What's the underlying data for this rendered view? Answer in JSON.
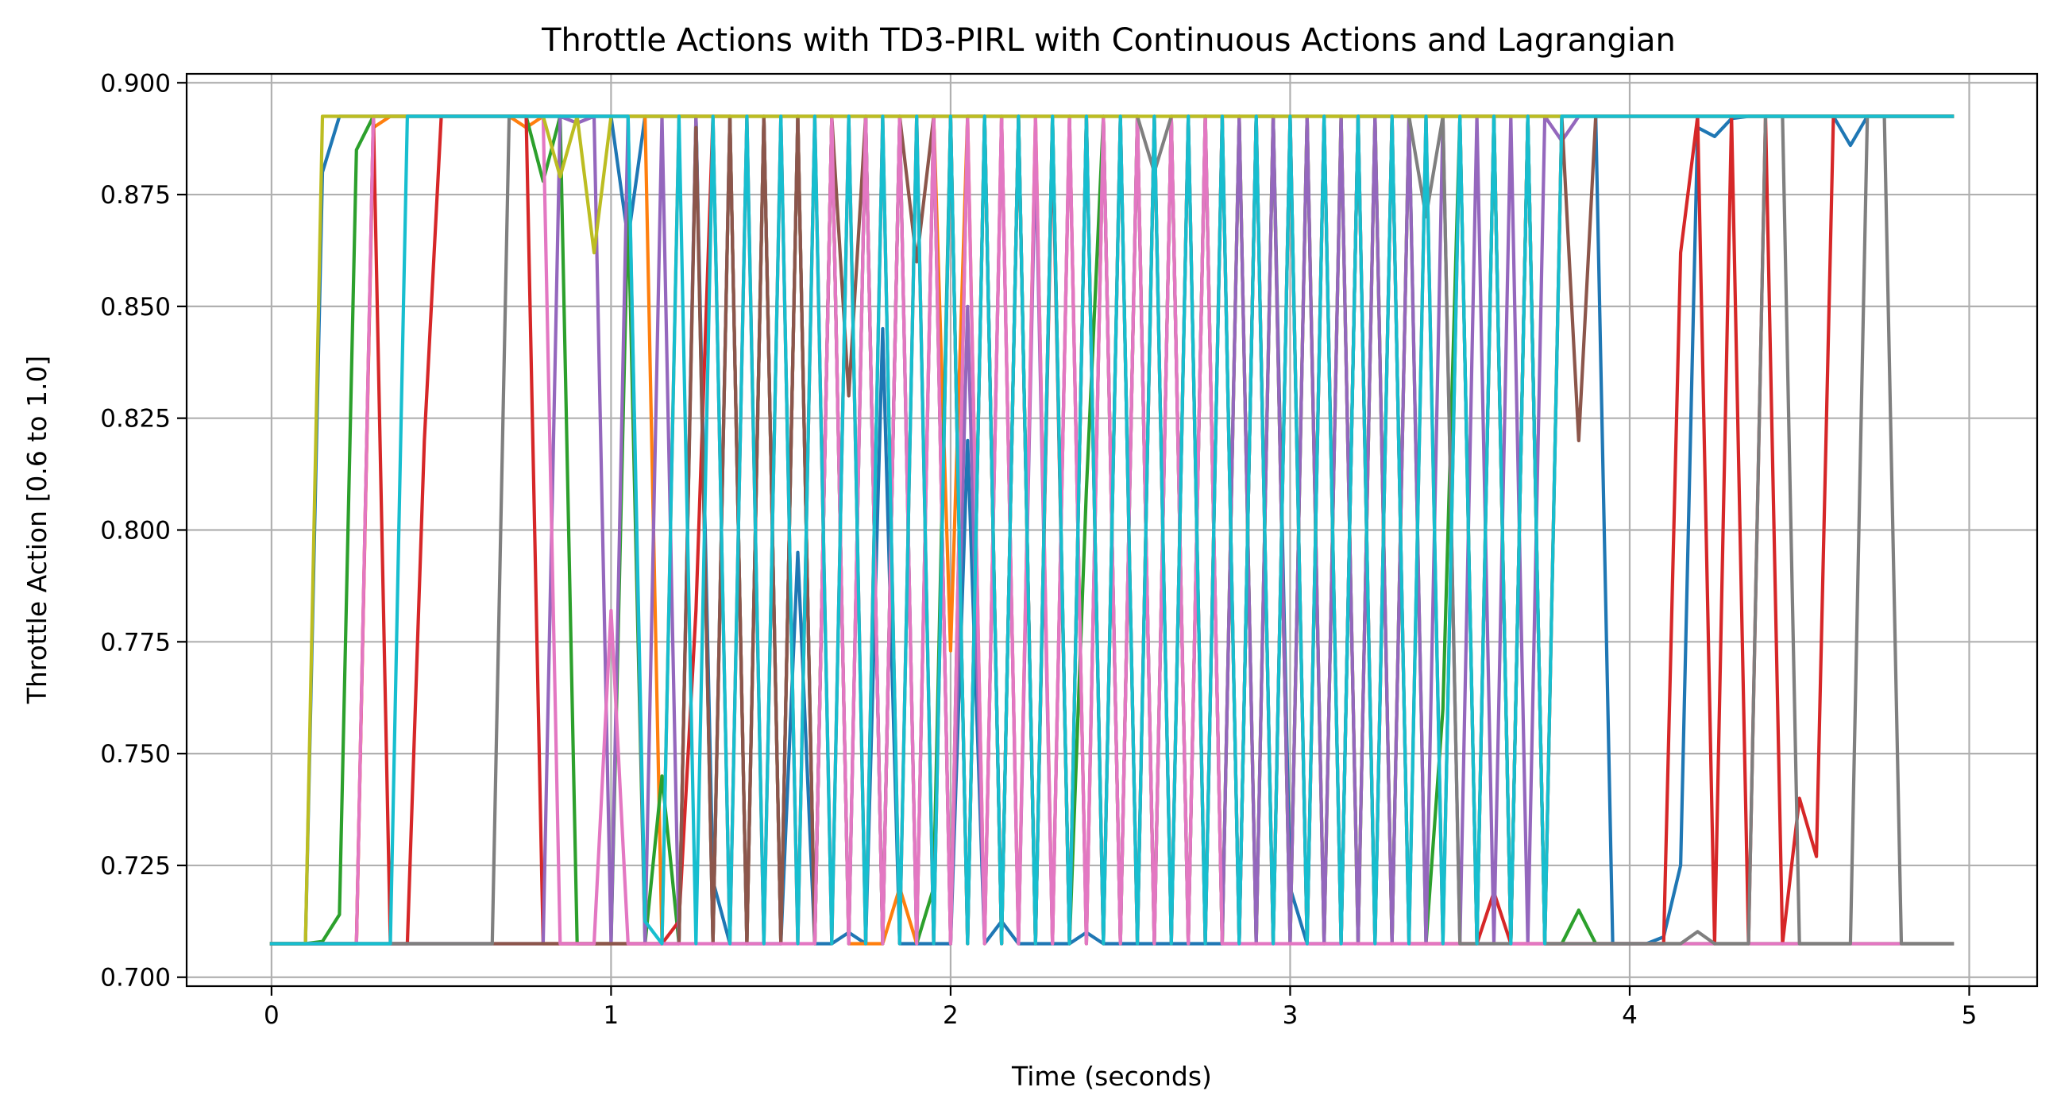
{
  "chart_data": {
    "type": "line",
    "title": "Throttle Actions with TD3-PIRL with Continuous Actions and Lagrangian",
    "xlabel": "Time (seconds)",
    "ylabel": "Throttle Action [0.6 to 1.0]",
    "xlim": [
      -0.25,
      5.2
    ],
    "ylim": [
      0.698,
      0.902
    ],
    "xticks": [
      0,
      1,
      2,
      3,
      4,
      5
    ],
    "xtick_labels": [
      "0",
      "1",
      "2",
      "3",
      "4",
      "5"
    ],
    "yticks": [
      0.7,
      0.725,
      0.75,
      0.775,
      0.8,
      0.825,
      0.85,
      0.875,
      0.9
    ],
    "ytick_labels": [
      "0.700",
      "0.725",
      "0.750",
      "0.775",
      "0.800",
      "0.825",
      "0.850",
      "0.875",
      "0.900"
    ],
    "grid": true,
    "legend": false,
    "x_step": 0.05,
    "low": 0.7075,
    "high": 0.8925,
    "series": [
      {
        "color": "#1f77b4",
        "values": [
          0.7075,
          0.7075,
          0.7075,
          0.88,
          0.8925,
          0.8925,
          0.8925,
          0.8925,
          0.8925,
          0.8925,
          0.8925,
          0.8925,
          0.8925,
          0.8925,
          0.8925,
          0.8925,
          0.8925,
          0.8925,
          0.8925,
          0.8925,
          0.8925,
          0.865,
          0.8925,
          0.8925,
          0.8925,
          0.8925,
          0.7215,
          0.7075,
          0.7075,
          0.7075,
          0.7075,
          0.795,
          0.7075,
          0.7075,
          0.71,
          0.7075,
          0.845,
          0.7075,
          0.7075,
          0.7075,
          0.7075,
          0.82,
          0.7075,
          0.7125,
          0.7075,
          0.7075,
          0.7075,
          0.7075,
          0.71,
          0.7075,
          0.7075,
          0.7075,
          0.7075,
          0.7075,
          0.7075,
          0.7075,
          0.7075,
          0.7075,
          0.8925,
          0.8925,
          0.72,
          0.7075,
          0.7075,
          0.7075,
          0.8925,
          0.8925,
          0.8925,
          0.8925,
          0.8925,
          0.8925,
          0.8925,
          0.8925,
          0.8925,
          0.8925,
          0.8925,
          0.8925,
          0.8925,
          0.8925,
          0.8925,
          0.7075,
          0.7075,
          0.7075,
          0.709,
          0.725,
          0.89,
          0.888,
          0.892,
          0.8925,
          0.8925,
          0.8925,
          0.8925,
          0.8925,
          0.8925,
          0.886,
          0.8925,
          0.8925,
          0.8925,
          0.8925,
          0.8925,
          0.8925
        ]
      },
      {
        "color": "#ff7f0e",
        "values": [
          0.7075,
          0.7075,
          0.7075,
          0.7075,
          0.7075,
          0.7075,
          0.89,
          0.8925,
          0.8925,
          0.8925,
          0.8925,
          0.8925,
          0.8925,
          0.8925,
          0.8925,
          0.89,
          0.8925,
          0.8925,
          0.8925,
          0.8925,
          0.8925,
          0.8925,
          0.8925,
          0.7075,
          0.8925,
          0.8925,
          0.8925,
          0.8925,
          0.7075,
          0.8925,
          0.7075,
          0.8925,
          0.7075,
          0.8925,
          0.7075,
          0.7075,
          0.7075,
          0.72,
          0.7075,
          0.8925,
          0.773,
          0.8925,
          0.7075,
          0.8925,
          0.7075,
          0.8925,
          0.7075,
          0.8925,
          0.7075,
          0.8925,
          0.7075,
          0.8925,
          0.7075,
          0.8925,
          0.7075,
          0.8925,
          0.7075,
          0.8925,
          0.7075,
          0.8925,
          0.7075,
          0.8925,
          0.7075,
          0.8925,
          0.7075,
          0.8925,
          0.7075,
          0.8925,
          0.8925,
          0.8925,
          0.8925,
          0.8925,
          0.8925,
          0.7075,
          0.8925,
          0.7075,
          0.8925,
          0.8925,
          0.8925,
          0.8925,
          0.8925,
          0.8925,
          0.8925,
          0.8925,
          0.8925,
          0.8925,
          0.8925,
          0.8925,
          0.8925,
          0.8925,
          0.8925,
          0.8925,
          0.8925,
          0.8925,
          0.8925,
          0.8925,
          0.8925,
          0.8925,
          0.8925,
          0.8925
        ]
      },
      {
        "color": "#2ca02c",
        "values": [
          0.7075,
          0.7075,
          0.7075,
          0.708,
          0.714,
          0.885,
          0.8925,
          0.8925,
          0.8925,
          0.8925,
          0.8925,
          0.8925,
          0.8925,
          0.8925,
          0.8925,
          0.8925,
          0.878,
          0.8925,
          0.7075,
          0.7075,
          0.7075,
          0.873,
          0.7075,
          0.745,
          0.7075,
          0.8925,
          0.7075,
          0.8925,
          0.7075,
          0.8925,
          0.7075,
          0.8925,
          0.7075,
          0.8925,
          0.7075,
          0.8925,
          0.7075,
          0.8925,
          0.7075,
          0.72,
          0.8925,
          0.7075,
          0.8925,
          0.7075,
          0.8925,
          0.7075,
          0.8925,
          0.7075,
          0.809,
          0.8925,
          0.7075,
          0.8925,
          0.7075,
          0.8925,
          0.7075,
          0.8925,
          0.7075,
          0.8925,
          0.7075,
          0.8925,
          0.7075,
          0.8925,
          0.7075,
          0.8925,
          0.7075,
          0.8925,
          0.7075,
          0.8925,
          0.7075,
          0.76,
          0.8925,
          0.7075,
          0.8925,
          0.7075,
          0.8925,
          0.7075,
          0.7075,
          0.715,
          0.7075,
          0.7075,
          0.7075,
          0.7075,
          0.7075,
          0.7075,
          0.7075,
          0.7075,
          0.7075,
          0.7075,
          0.7075,
          0.7075,
          0.7075,
          0.7075,
          0.7075,
          0.7075,
          0.7075,
          0.7075,
          0.7075,
          0.7075,
          0.7075,
          0.7075
        ]
      },
      {
        "color": "#d62728",
        "values": [
          0.7075,
          0.7075,
          0.7075,
          0.7075,
          0.7075,
          0.7075,
          0.8925,
          0.7075,
          0.7075,
          0.82,
          0.8925,
          0.8925,
          0.8925,
          0.8925,
          0.8925,
          0.8925,
          0.7075,
          0.7075,
          0.7075,
          0.7075,
          0.7075,
          0.7075,
          0.7075,
          0.7075,
          0.7125,
          0.782,
          0.8925,
          0.7075,
          0.8925,
          0.7075,
          0.8925,
          0.7075,
          0.8925,
          0.7075,
          0.8925,
          0.7075,
          0.8925,
          0.7075,
          0.8925,
          0.7075,
          0.8925,
          0.7075,
          0.8925,
          0.7075,
          0.8925,
          0.7075,
          0.889,
          0.7075,
          0.8925,
          0.7075,
          0.8925,
          0.7075,
          0.8925,
          0.7075,
          0.8925,
          0.7075,
          0.8925,
          0.7075,
          0.8925,
          0.7075,
          0.8925,
          0.7075,
          0.8925,
          0.7075,
          0.8925,
          0.7075,
          0.8925,
          0.7075,
          0.7075,
          0.7075,
          0.7075,
          0.7075,
          0.719,
          0.7075,
          0.7075,
          0.7075,
          0.7075,
          0.7075,
          0.7075,
          0.7075,
          0.7075,
          0.7075,
          0.7075,
          0.862,
          0.8925,
          0.7075,
          0.8925,
          0.7075,
          0.8925,
          0.7075,
          0.74,
          0.727,
          0.8925,
          0.8925,
          0.8925,
          0.8925,
          0.8925,
          0.8925,
          0.8925,
          0.8925
        ]
      },
      {
        "color": "#9467bd",
        "values": [
          0.7075,
          0.7075,
          0.7075,
          0.7075,
          0.7075,
          0.7075,
          0.7075,
          0.7075,
          0.7075,
          0.7075,
          0.7075,
          0.7075,
          0.7075,
          0.7075,
          0.7075,
          0.7075,
          0.7075,
          0.8925,
          0.891,
          0.8925,
          0.7075,
          0.8925,
          0.7075,
          0.8925,
          0.7075,
          0.8925,
          0.7075,
          0.8925,
          0.7075,
          0.8925,
          0.7075,
          0.8925,
          0.7075,
          0.8925,
          0.7075,
          0.8925,
          0.7075,
          0.8925,
          0.7075,
          0.8925,
          0.7075,
          0.85,
          0.7075,
          0.8925,
          0.7075,
          0.885,
          0.7075,
          0.8925,
          0.7075,
          0.8925,
          0.7075,
          0.8925,
          0.7075,
          0.8925,
          0.7075,
          0.8925,
          0.7075,
          0.8925,
          0.7075,
          0.8925,
          0.7075,
          0.8925,
          0.7075,
          0.8925,
          0.7075,
          0.8925,
          0.7075,
          0.8925,
          0.7075,
          0.8925,
          0.7075,
          0.8925,
          0.7075,
          0.8925,
          0.7075,
          0.8925,
          0.887,
          0.8925,
          0.8925,
          0.8925,
          0.8925,
          0.8925,
          0.8925,
          0.8925,
          0.8925,
          0.8925,
          0.8925,
          0.8925,
          0.8925,
          0.8925,
          0.8925,
          0.8925,
          0.8925,
          0.8925,
          0.8925,
          0.8925,
          0.8925,
          0.8925,
          0.8925,
          0.8925
        ]
      },
      {
        "color": "#8c564b",
        "values": [
          0.7075,
          0.7075,
          0.7075,
          0.7075,
          0.7075,
          0.7075,
          0.7075,
          0.7075,
          0.7075,
          0.7075,
          0.7075,
          0.7075,
          0.7075,
          0.7075,
          0.7075,
          0.7075,
          0.7075,
          0.7075,
          0.7075,
          0.7075,
          0.7075,
          0.7075,
          0.7075,
          0.7075,
          0.7075,
          0.89,
          0.7075,
          0.8925,
          0.7075,
          0.8925,
          0.7075,
          0.8925,
          0.7075,
          0.8925,
          0.83,
          0.8925,
          0.7075,
          0.8925,
          0.86,
          0.8925,
          0.7075,
          0.8925,
          0.8925,
          0.7075,
          0.8925,
          0.7075,
          0.8925,
          0.7075,
          0.8925,
          0.7075,
          0.8925,
          0.7075,
          0.8925,
          0.7075,
          0.8925,
          0.7075,
          0.8925,
          0.7075,
          0.8925,
          0.7075,
          0.8925,
          0.7075,
          0.8925,
          0.7075,
          0.8925,
          0.7075,
          0.8925,
          0.7075,
          0.8925,
          0.7075,
          0.8925,
          0.7075,
          0.8925,
          0.7075,
          0.8925,
          0.7075,
          0.8925,
          0.82,
          0.8925,
          0.8925,
          0.8925,
          0.8925,
          0.8925,
          0.8925,
          0.8925,
          0.8925,
          0.8925,
          0.8925,
          0.8925,
          0.8925,
          0.8925,
          0.8925,
          0.8925,
          0.8925,
          0.8925,
          0.8925,
          0.8925,
          0.8925,
          0.8925,
          0.8925
        ]
      },
      {
        "color": "#e377c2",
        "values": [
          0.7075,
          0.7075,
          0.7075,
          0.7075,
          0.7075,
          0.7075,
          0.8925,
          0.8925,
          0.8925,
          0.8925,
          0.8925,
          0.8925,
          0.8925,
          0.8925,
          0.8925,
          0.8925,
          0.8925,
          0.7075,
          0.7075,
          0.7075,
          0.782,
          0.7075,
          0.7075,
          0.7075,
          0.7075,
          0.7075,
          0.7075,
          0.7075,
          0.7075,
          0.7075,
          0.7075,
          0.7075,
          0.7075,
          0.8925,
          0.7075,
          0.8925,
          0.7075,
          0.8925,
          0.7075,
          0.8925,
          0.7075,
          0.8925,
          0.7075,
          0.8925,
          0.7075,
          0.8925,
          0.7075,
          0.8925,
          0.7075,
          0.8925,
          0.7075,
          0.8925,
          0.7075,
          0.8925,
          0.7075,
          0.8925,
          0.7075,
          0.7075,
          0.7075,
          0.7075,
          0.7075,
          0.7075,
          0.7075,
          0.7075,
          0.7075,
          0.7075,
          0.7075,
          0.7075,
          0.7075,
          0.7075,
          0.7075,
          0.7075,
          0.7075,
          0.7075,
          0.7075,
          0.7075,
          0.7075,
          0.7075,
          0.7075,
          0.7075,
          0.7075,
          0.7075,
          0.7075,
          0.7075,
          0.7075,
          0.7075,
          0.7075,
          0.7075,
          0.7075,
          0.7075,
          0.7075,
          0.7075,
          0.7075,
          0.7075,
          0.7075,
          0.7075,
          0.7075,
          0.7075,
          0.7075,
          0.7075
        ]
      },
      {
        "color": "#7f7f7f",
        "values": [
          0.7075,
          0.7075,
          0.7075,
          0.7075,
          0.7075,
          0.7075,
          0.7075,
          0.7075,
          0.7075,
          0.7075,
          0.7075,
          0.7075,
          0.7075,
          0.7075,
          0.8925,
          0.8925,
          0.8925,
          0.8925,
          0.8925,
          0.8925,
          0.8925,
          0.8925,
          0.8925,
          0.8925,
          0.8925,
          0.8925,
          0.8925,
          0.8925,
          0.8925,
          0.8925,
          0.8925,
          0.8925,
          0.8925,
          0.8925,
          0.8925,
          0.8925,
          0.8925,
          0.8925,
          0.8925,
          0.8925,
          0.8925,
          0.8925,
          0.8925,
          0.8925,
          0.8925,
          0.8925,
          0.8925,
          0.8925,
          0.8925,
          0.8925,
          0.8925,
          0.8925,
          0.88,
          0.8925,
          0.8925,
          0.8925,
          0.8925,
          0.8925,
          0.8925,
          0.8925,
          0.8925,
          0.8925,
          0.8925,
          0.8925,
          0.8925,
          0.8925,
          0.8925,
          0.8925,
          0.87,
          0.8925,
          0.7075,
          0.7075,
          0.7075,
          0.7075,
          0.8925,
          0.7075,
          0.7075,
          0.7075,
          0.7075,
          0.7075,
          0.7075,
          0.7075,
          0.7075,
          0.7075,
          0.7102,
          0.7075,
          0.7075,
          0.7075,
          0.8925,
          0.8925,
          0.7075,
          0.7075,
          0.7075,
          0.7075,
          0.8925,
          0.8925,
          0.7075,
          0.7075,
          0.7075,
          0.7075
        ]
      },
      {
        "color": "#bcbd22",
        "values": [
          0.7075,
          0.7075,
          0.7075,
          0.8925,
          0.8925,
          0.8925,
          0.8925,
          0.8925,
          0.8925,
          0.8925,
          0.8925,
          0.8925,
          0.8925,
          0.8925,
          0.8925,
          0.8925,
          0.8925,
          0.879,
          0.8925,
          0.862,
          0.8925,
          0.8925,
          0.8925,
          0.8925,
          0.8925,
          0.8925,
          0.8925,
          0.8925,
          0.8925,
          0.8925,
          0.8925,
          0.8925,
          0.8925,
          0.8925,
          0.8925,
          0.8925,
          0.8925,
          0.8925,
          0.8925,
          0.8925,
          0.8925,
          0.8925,
          0.8925,
          0.8925,
          0.8925,
          0.8925,
          0.8925,
          0.8925,
          0.8925,
          0.8925,
          0.8925,
          0.8925,
          0.8925,
          0.8925,
          0.8925,
          0.8925,
          0.8925,
          0.8925,
          0.8925,
          0.8925,
          0.8925,
          0.8925,
          0.8925,
          0.8925,
          0.8925,
          0.8925,
          0.8925,
          0.8925,
          0.8925,
          0.8925,
          0.8925,
          0.8925,
          0.8925,
          0.8925,
          0.8925,
          0.8925,
          0.8925,
          0.8925,
          0.8925,
          0.8925,
          0.8925,
          0.8925,
          0.8925,
          0.8925,
          0.8925,
          0.8925,
          0.8925,
          0.8925,
          0.8925,
          0.8925,
          0.8925,
          0.8925,
          0.8925,
          0.8925,
          0.8925,
          0.8925,
          0.8925,
          0.8925,
          0.8925,
          0.8925
        ]
      },
      {
        "color": "#17becf",
        "values": [
          0.7075,
          0.7075,
          0.7075,
          0.7075,
          0.7075,
          0.7075,
          0.7075,
          0.7075,
          0.8925,
          0.8925,
          0.8925,
          0.8925,
          0.8925,
          0.8925,
          0.8925,
          0.8925,
          0.8925,
          0.8925,
          0.8925,
          0.8925,
          0.8925,
          0.8925,
          0.7125,
          0.7075,
          0.8925,
          0.7075,
          0.8925,
          0.7075,
          0.8925,
          0.7075,
          0.8925,
          0.7075,
          0.8925,
          0.7075,
          0.8925,
          0.7075,
          0.8925,
          0.7075,
          0.8925,
          0.7075,
          0.8925,
          0.7075,
          0.8925,
          0.7075,
          0.8925,
          0.7075,
          0.8925,
          0.7075,
          0.8925,
          0.7075,
          0.8925,
          0.7075,
          0.8925,
          0.7075,
          0.8925,
          0.7075,
          0.8925,
          0.7075,
          0.8925,
          0.7075,
          0.8925,
          0.7075,
          0.8925,
          0.7075,
          0.8925,
          0.7075,
          0.8925,
          0.7075,
          0.8925,
          0.7075,
          0.8925,
          0.7075,
          0.8925,
          0.7075,
          0.8925,
          0.7075,
          0.8925,
          0.8925,
          0.8925,
          0.8925,
          0.8925,
          0.8925,
          0.8925,
          0.8925,
          0.8925,
          0.8925,
          0.8925,
          0.8925,
          0.8925,
          0.8925,
          0.8925,
          0.8925,
          0.8925,
          0.8925,
          0.8925,
          0.8925,
          0.8925,
          0.8925,
          0.8925,
          0.8925
        ]
      }
    ]
  }
}
